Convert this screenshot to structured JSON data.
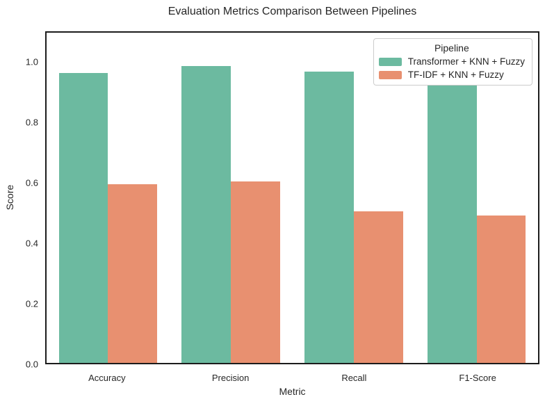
{
  "chart_data": {
    "type": "bar",
    "title": "Evaluation Metrics Comparison Between Pipelines",
    "xlabel": "Metric",
    "ylabel": "Score",
    "categories": [
      "Accuracy",
      "Precision",
      "Recall",
      "F1-Score"
    ],
    "series": [
      {
        "name": "Transformer + KNN + Fuzzy",
        "color": "#6cbaa0",
        "values": [
          0.965,
          0.99,
          0.97,
          0.925
        ]
      },
      {
        "name": "TF-IDF + KNN + Fuzzy",
        "color": "#e89070",
        "values": [
          0.595,
          0.605,
          0.505,
          0.49
        ]
      }
    ],
    "ylim": [
      0,
      1.1
    ],
    "yticks": [
      0.0,
      0.2,
      0.4,
      0.6,
      0.8,
      1.0
    ],
    "grid": false,
    "legend": {
      "title": "Pipeline",
      "position": "upper right"
    }
  }
}
